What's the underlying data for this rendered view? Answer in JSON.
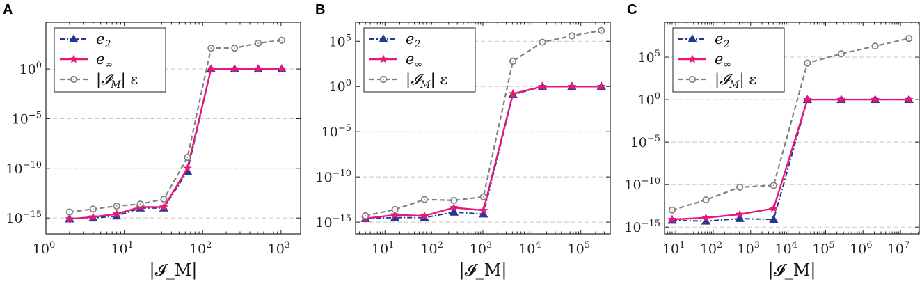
{
  "colors": {
    "e2": "#1f3a93",
    "einf": "#e6197a",
    "IMeps": "#808080",
    "grid": "#c8c8c8"
  },
  "chart_data": [
    {
      "panel": "A",
      "type": "line",
      "xscale": "log",
      "yscale": "log",
      "xlim_exp": [
        0,
        3.25
      ],
      "ylim_exp": [
        -16.6,
        4.7
      ],
      "xticks": [
        {
          "base": "10",
          "exp": "0",
          "e": 0
        },
        {
          "base": "10",
          "exp": "1",
          "e": 1
        },
        {
          "base": "10",
          "exp": "2",
          "e": 2
        },
        {
          "base": "10",
          "exp": "3",
          "e": 3
        }
      ],
      "yticks": [
        {
          "base": "10",
          "exp": "−15",
          "e": -15
        },
        {
          "base": "10",
          "exp": "−10",
          "e": -10
        },
        {
          "base": "10",
          "exp": "−5",
          "e": -5
        },
        {
          "base": "10",
          "exp": "0",
          "e": 0
        }
      ],
      "gridlines_exp": [
        -15,
        -10,
        -5,
        0
      ],
      "xlabel": "|𝓘_M|",
      "series": [
        {
          "name": "e_2",
          "legend_base": "e",
          "legend_sub": "2",
          "style": "e2",
          "x": [
            2,
            4,
            8,
            16,
            32,
            64,
            128,
            256,
            512,
            1024
          ],
          "y_exp": [
            -15.1,
            -15.0,
            -14.8,
            -14.0,
            -14.0,
            -10.3,
            0.0,
            0.0,
            0.0,
            0.0
          ]
        },
        {
          "name": "e_∞",
          "legend_base": "e",
          "legend_sub": "∞",
          "style": "einf",
          "x": [
            2,
            4,
            8,
            16,
            32,
            64,
            128,
            256,
            512,
            1024
          ],
          "y_exp": [
            -15.1,
            -14.9,
            -14.6,
            -13.9,
            -13.9,
            -10.0,
            0.0,
            0.0,
            0.0,
            0.0
          ]
        },
        {
          "name": "|𝓘_M| ε",
          "legend_base": "|𝓘",
          "legend_sub": "M",
          "legend_tail": "| ε",
          "style": "IMeps",
          "x": [
            2,
            4,
            8,
            16,
            32,
            64,
            128,
            256,
            512,
            1024
          ],
          "y_exp": [
            -14.4,
            -14.1,
            -13.8,
            -13.6,
            -13.1,
            -8.9,
            2.1,
            2.1,
            2.6,
            2.9
          ]
        }
      ]
    },
    {
      "panel": "B",
      "type": "line",
      "xscale": "log",
      "yscale": "log",
      "xlim_exp": [
        0.4,
        5.6
      ],
      "ylim_exp": [
        -16.3,
        7.1
      ],
      "xticks": [
        {
          "base": "10",
          "exp": "1",
          "e": 1
        },
        {
          "base": "10",
          "exp": "2",
          "e": 2
        },
        {
          "base": "10",
          "exp": "3",
          "e": 3
        },
        {
          "base": "10",
          "exp": "4",
          "e": 4
        },
        {
          "base": "10",
          "exp": "5",
          "e": 5
        }
      ],
      "yticks": [
        {
          "base": "10",
          "exp": "−15",
          "e": -15
        },
        {
          "base": "10",
          "exp": "−10",
          "e": -10
        },
        {
          "base": "10",
          "exp": "−5",
          "e": -5
        },
        {
          "base": "10",
          "exp": "0",
          "e": 0
        },
        {
          "base": "10",
          "exp": "5",
          "e": 5
        }
      ],
      "gridlines_exp": [
        -15,
        -10,
        -5,
        0,
        5
      ],
      "xlabel": "|𝓘_M|",
      "series": [
        {
          "name": "e_2",
          "legend_base": "e",
          "legend_sub": "2",
          "style": "e2",
          "x": [
            4,
            16,
            64,
            256,
            1024,
            4096,
            16384,
            65536,
            262144
          ],
          "y_exp": [
            -14.6,
            -14.5,
            -14.5,
            -13.9,
            -14.1,
            -0.9,
            0.0,
            0.0,
            0.0
          ]
        },
        {
          "name": "e_∞",
          "legend_base": "e",
          "legend_sub": "∞",
          "style": "einf",
          "x": [
            4,
            16,
            64,
            256,
            1024,
            4096,
            16384,
            65536,
            262144
          ],
          "y_exp": [
            -14.6,
            -14.2,
            -14.3,
            -13.4,
            -13.7,
            -0.8,
            0.0,
            0.0,
            0.0
          ]
        },
        {
          "name": "|𝓘_M| ε",
          "legend_base": "|𝓘",
          "legend_sub": "M",
          "legend_tail": "| ε",
          "style": "IMeps",
          "x": [
            4,
            16,
            64,
            256,
            1024,
            4096,
            16384,
            65536,
            262144
          ],
          "y_exp": [
            -14.3,
            -13.6,
            -12.5,
            -12.6,
            -12.2,
            2.8,
            4.9,
            5.6,
            6.2
          ]
        }
      ]
    },
    {
      "panel": "C",
      "type": "line",
      "xscale": "log",
      "yscale": "log",
      "xlim_exp": [
        0.7,
        7.5
      ],
      "ylim_exp": [
        -15.8,
        9.1
      ],
      "xticks": [
        {
          "base": "10",
          "exp": "1",
          "e": 1
        },
        {
          "base": "10",
          "exp": "2",
          "e": 2
        },
        {
          "base": "10",
          "exp": "3",
          "e": 3
        },
        {
          "base": "10",
          "exp": "4",
          "e": 4
        },
        {
          "base": "10",
          "exp": "5",
          "e": 5
        },
        {
          "base": "10",
          "exp": "6",
          "e": 6
        },
        {
          "base": "10",
          "exp": "7",
          "e": 7
        }
      ],
      "yticks": [
        {
          "base": "10",
          "exp": "−15",
          "e": -15
        },
        {
          "base": "10",
          "exp": "−10",
          "e": -10
        },
        {
          "base": "10",
          "exp": "−5",
          "e": -5
        },
        {
          "base": "10",
          "exp": "0",
          "e": 0
        },
        {
          "base": "10",
          "exp": "5",
          "e": 5
        }
      ],
      "gridlines_exp": [
        -15,
        -10,
        -5,
        0,
        5
      ],
      "xlabel": "|𝓘_M|",
      "series": [
        {
          "name": "e_2",
          "legend_base": "e",
          "legend_sub": "2",
          "style": "e2",
          "x": [
            8,
            64,
            512,
            4096,
            32768,
            262144,
            2097152,
            16777216
          ],
          "y_exp": [
            -14.2,
            -14.3,
            -14.0,
            -14.1,
            0.0,
            0.0,
            0.0,
            0.0
          ]
        },
        {
          "name": "e_∞",
          "legend_base": "e",
          "legend_sub": "∞",
          "style": "einf",
          "x": [
            8,
            64,
            512,
            4096,
            32768,
            262144,
            2097152,
            16777216
          ],
          "y_exp": [
            -14.1,
            -13.9,
            -13.5,
            -12.8,
            0.0,
            0.0,
            0.0,
            0.0
          ]
        },
        {
          "name": "|𝓘_M| ε",
          "legend_base": "|𝓘",
          "legend_sub": "M",
          "legend_tail": "| ε",
          "style": "IMeps",
          "x": [
            8,
            64,
            512,
            4096,
            32768,
            262144,
            2097152,
            16777216
          ],
          "y_exp": [
            -13.0,
            -11.8,
            -10.3,
            -10.1,
            4.3,
            5.4,
            6.3,
            7.2
          ]
        }
      ]
    }
  ]
}
